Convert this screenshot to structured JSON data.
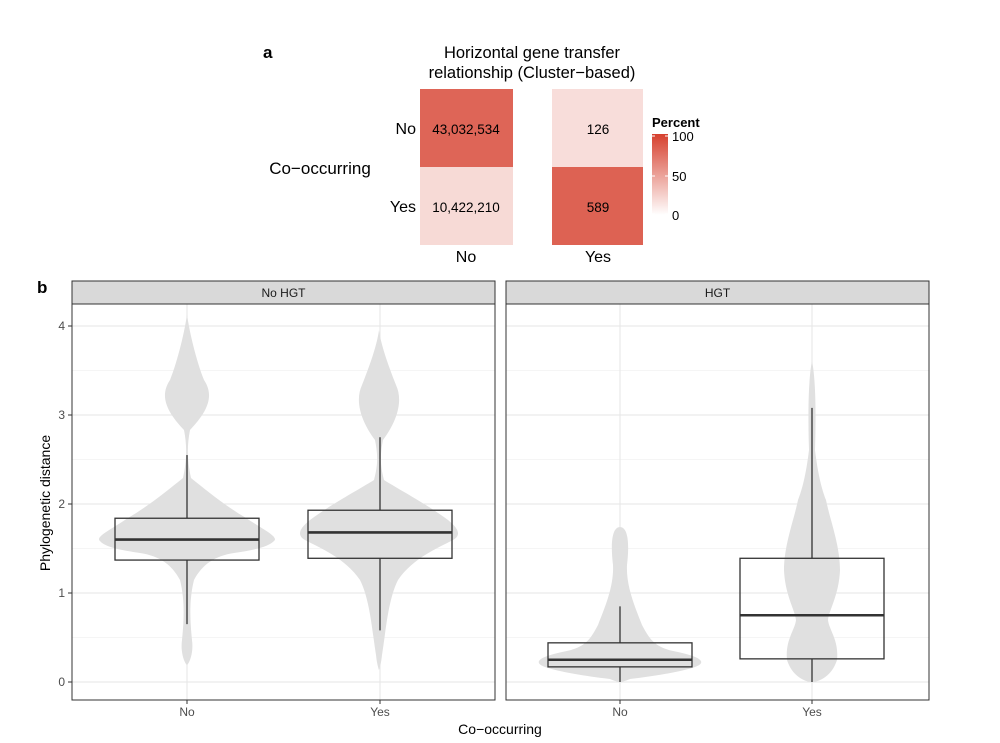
{
  "panel_labels": {
    "a": "a",
    "b": "b"
  },
  "chart_data": [
    {
      "type": "heatmap",
      "title_line1": "Horizontal gene transfer",
      "title_line2": "relationship (Cluster−based)",
      "ylabel": "Co−occurring",
      "x_categories": [
        "No",
        "Yes"
      ],
      "y_categories": [
        "No",
        "Yes"
      ],
      "cells": [
        {
          "x": "No",
          "y": "No",
          "label": "43,032,534",
          "percent": 80.5
        },
        {
          "x": "No",
          "y": "Yes",
          "label": "10,422,210",
          "percent": 19.5
        },
        {
          "x": "Yes",
          "y": "No",
          "label": "126",
          "percent": 17.6
        },
        {
          "x": "Yes",
          "y": "Yes",
          "label": "589",
          "percent": 82.4
        }
      ],
      "legend": {
        "title": "Percent",
        "ticks": [
          0,
          50,
          100
        ],
        "low_color": "#ffffff",
        "high_color": "#d6402e"
      }
    },
    {
      "type": "violin-box",
      "ylabel": "Phylogenetic distance",
      "xlabel": "Co−occurring",
      "ylim": [
        0,
        4.25
      ],
      "yticks": [
        "0",
        "1",
        "2",
        "3",
        "4"
      ],
      "facets": [
        {
          "name": "No HGT",
          "groups": [
            {
              "x": "No",
              "box": {
                "q1": 1.37,
                "median": 1.6,
                "q3": 1.84,
                "whisker_low": 0.65,
                "whisker_high": 2.55
              }
            },
            {
              "x": "Yes",
              "box": {
                "q1": 1.39,
                "median": 1.68,
                "q3": 1.93,
                "whisker_low": 0.58,
                "whisker_high": 2.75
              }
            }
          ]
        },
        {
          "name": "HGT",
          "groups": [
            {
              "x": "No",
              "box": {
                "q1": 0.17,
                "median": 0.25,
                "q3": 0.44,
                "whisker_low": 0.0,
                "whisker_high": 0.85
              }
            },
            {
              "x": "Yes",
              "box": {
                "q1": 0.26,
                "median": 0.75,
                "q3": 1.39,
                "whisker_low": 0.0,
                "whisker_high": 3.08
              }
            }
          ]
        }
      ],
      "violin_color": "#e0e0e0",
      "strip_color": "#d9d9d9",
      "grid": true
    }
  ]
}
